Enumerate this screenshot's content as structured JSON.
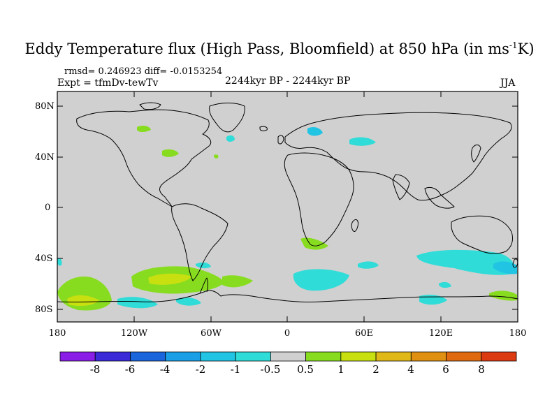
{
  "header": {
    "title_main": "Eddy Temperature flux (High Pass, Bloomfield) at 850 hPa (in ms",
    "title_sup": "-1",
    "title_tail": "K)",
    "stats": "rmsd= 0.246923 diff= -0.0153254",
    "expt": "Expt = tfmDv-tewTv",
    "period": "2244kyr BP - 2244kyr BP",
    "season": "JJA"
  },
  "axes": {
    "lat_labels": [
      "80N",
      "40N",
      "0",
      "40S",
      "80S"
    ],
    "lon_labels": [
      "180",
      "120W",
      "60W",
      "0",
      "60E",
      "120E",
      "180"
    ]
  },
  "colorbar": {
    "labels": [
      "-8",
      "-6",
      "-4",
      "-2",
      "-1",
      "-0.5",
      "0.5",
      "1",
      "2",
      "4",
      "6",
      "8"
    ],
    "colors": [
      "#8a1ee6",
      "#3a2ad8",
      "#1a64dc",
      "#1a9ee6",
      "#22c4e4",
      "#30dcd8",
      "#d0d0d0",
      "#88dc20",
      "#c8e010",
      "#e0b818",
      "#e09010",
      "#e06a10",
      "#dc3a10"
    ]
  },
  "map": {
    "background": "#d0d0d0"
  }
}
